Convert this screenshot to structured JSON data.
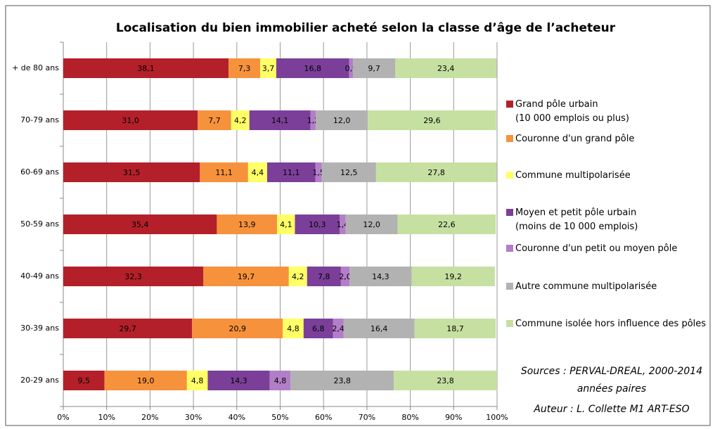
{
  "chart_data": {
    "type": "stacked_bar_horizontal",
    "title": "Localisation du bien immobilier acheté selon la classe d’âge de l’acheteur",
    "categories": [
      "+ de 80 ans",
      "70-79 ans",
      "60-69 ans",
      "50-59 ans",
      "40-49 ans",
      "30-39 ans",
      "20-29 ans"
    ],
    "series": [
      {
        "name": "Grand pôle urbain\n(10 000 emplois ou plus)",
        "color": "#b3202a",
        "values": [
          38.1,
          31.0,
          31.5,
          35.4,
          32.3,
          29.7,
          9.5
        ],
        "value_labels": [
          "38,1",
          "31,0",
          "31,5",
          "35,4",
          "32,3",
          "29,7",
          "9,5"
        ]
      },
      {
        "name": "Couronne d'un grand pôle",
        "color": "#f7923c",
        "values": [
          7.3,
          7.7,
          11.1,
          13.9,
          19.7,
          20.9,
          19.0
        ],
        "value_labels": [
          "7,3",
          "7,7",
          "11,1",
          "13,9",
          "19,7",
          "20,9",
          "19,0"
        ]
      },
      {
        "name": "Commune multipolarisée",
        "color": "#ffff66",
        "values": [
          3.7,
          4.2,
          4.4,
          4.1,
          4.2,
          4.8,
          4.8
        ],
        "value_labels": [
          "3,7",
          "4,2",
          "4,4",
          "4,1",
          "4,2",
          "4,8",
          "4,8"
        ]
      },
      {
        "name": "Moyen et petit pôle urbain\n(moins de 10 000 emplois)",
        "color": "#7b3f99",
        "values": [
          16.8,
          14.1,
          11.1,
          10.3,
          7.8,
          6.8,
          14.3
        ],
        "value_labels": [
          "16,8",
          "14,1",
          "11,1",
          "10,3",
          "7,8",
          "6,8",
          "14,3"
        ]
      },
      {
        "name": "Couronne d'un petit ou moyen pôle",
        "color": "#b27ec8",
        "values": [
          0.9,
          1.2,
          1.5,
          1.4,
          2.0,
          2.4,
          4.8
        ],
        "value_labels": [
          "0,9",
          "1,2",
          "1,5",
          "1,4",
          "2,0",
          "2,4",
          "4,8"
        ]
      },
      {
        "name": "Autre commune multipolarisée",
        "color": "#b2b2b2",
        "values": [
          9.7,
          12.0,
          12.5,
          12.0,
          14.3,
          16.4,
          23.8
        ],
        "value_labels": [
          "9,7",
          "12,0",
          "12,5",
          "12,0",
          "14,3",
          "16,4",
          "23,8"
        ]
      },
      {
        "name": "Commune isolée hors influence des pôles",
        "color": "#c6e0a2",
        "values": [
          23.4,
          29.6,
          27.8,
          22.6,
          19.2,
          18.7,
          23.8
        ],
        "value_labels": [
          "23,4",
          "29,6",
          "27,8",
          "22,6",
          "19,2",
          "18,7",
          "23,8"
        ]
      }
    ],
    "xlim": [
      0,
      100
    ],
    "xticks": [
      {
        "value": 0,
        "label": "0%"
      },
      {
        "value": 10,
        "label": "10%"
      },
      {
        "value": 20,
        "label": "20%"
      },
      {
        "value": 30,
        "label": "30%"
      },
      {
        "value": 40,
        "label": "40%"
      },
      {
        "value": 50,
        "label": "50%"
      },
      {
        "value": 60,
        "label": "60%"
      },
      {
        "value": 70,
        "label": "70%"
      },
      {
        "value": 80,
        "label": "80%"
      },
      {
        "value": 90,
        "label": "90%"
      },
      {
        "value": 100,
        "label": "100%"
      }
    ],
    "grid": true,
    "legend": "right",
    "annotations": [
      "Sources : PERVAL-DREAL, 2000-2014",
      "années paires",
      "Auteur : L. Collette M1 ART-ESO"
    ]
  }
}
